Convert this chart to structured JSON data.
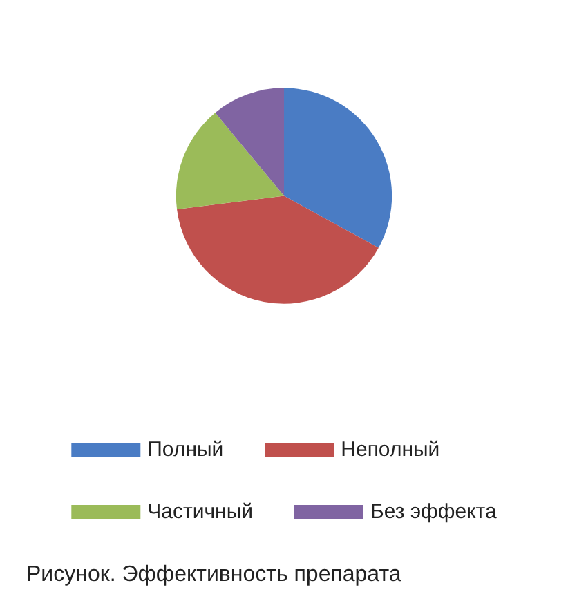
{
  "chart_data": {
    "type": "pie",
    "title": "Рисунок. Эффективность препарата",
    "categories": [
      "Полный",
      "Неполный",
      "Частичный",
      "Без эффекта"
    ],
    "values": [
      33,
      40,
      16,
      11
    ],
    "colors": [
      "#4a7cc4",
      "#c0504d",
      "#9bbb59",
      "#8064a2"
    ],
    "legend": "bottom"
  }
}
